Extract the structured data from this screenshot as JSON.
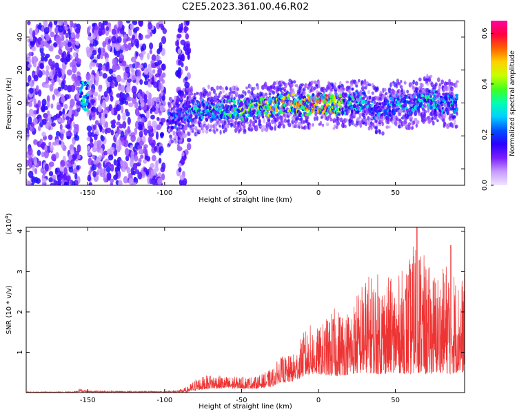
{
  "title": "C2E5.2023.361.00.46.R02",
  "chart_data": [
    {
      "type": "heatmap",
      "xlabel": "Height of straight line (km)",
      "ylabel": "Frequency (Hz)",
      "xlim": [
        -190,
        95
      ],
      "ylim": [
        -50,
        50
      ],
      "xticks": [
        -150,
        -100,
        -50,
        0,
        50
      ],
      "yticks": [
        -40,
        -20,
        0,
        20,
        40
      ],
      "colorbar": {
        "label": "Normalized spectral amplitude",
        "range": [
          0.0,
          0.65
        ],
        "ticks": [
          0.0,
          0.2,
          0.4,
          0.6
        ],
        "colors": [
          "#f0e6ff",
          "#c79bff",
          "#7a1fff",
          "#2a00ff",
          "#0050ff",
          "#00d0ff",
          "#00ffb0",
          "#40ff20",
          "#c8ff00",
          "#ffd000",
          "#ff6000",
          "#ff0040",
          "#ff00a0"
        ]
      },
      "noise_bands": [
        {
          "x_start": -190,
          "x_end": -155,
          "freq_range": [
            -50,
            50
          ],
          "level": 0.1
        },
        {
          "x_start": -150,
          "x_end": -100,
          "freq_range": [
            -50,
            50
          ],
          "level": 0.1
        },
        {
          "x_start": -92,
          "x_end": -84,
          "freq_range": [
            -50,
            50
          ],
          "level": 0.08
        }
      ],
      "signal_trace": {
        "x": [
          -155,
          -150,
          -98,
          -90,
          -85,
          -80,
          -70,
          -60,
          -50,
          -40,
          -30,
          -20,
          -10,
          0,
          10,
          20,
          30,
          40,
          50,
          60,
          70,
          80,
          90
        ],
        "freq": [
          2,
          0,
          -12,
          -10,
          -5,
          -5,
          -4,
          -4,
          -4,
          -3,
          -2,
          0,
          -2,
          0,
          -2,
          0,
          0,
          -6,
          0,
          -2,
          3,
          0,
          -1
        ],
        "amplitude": [
          0.25,
          0.2,
          0.25,
          0.25,
          0.3,
          0.3,
          0.32,
          0.35,
          0.38,
          0.42,
          0.45,
          0.5,
          0.48,
          0.6,
          0.5,
          0.35,
          0.3,
          0.25,
          0.3,
          0.28,
          0.35,
          0.3,
          0.3
        ]
      }
    },
    {
      "type": "line",
      "xlabel": "Height of straight line (km)",
      "ylabel": "SNR (10 * v/v)",
      "y_multiplier": "(x10^4)",
      "xlim": [
        -190,
        95
      ],
      "ylim": [
        0,
        4.1
      ],
      "xticks": [
        -150,
        -100,
        -50,
        0,
        50
      ],
      "yticks": [
        1,
        2,
        3,
        4
      ],
      "color": "#ee3333",
      "envelope": {
        "x": [
          -190,
          -160,
          -155,
          -150,
          -100,
          -90,
          -85,
          -80,
          -70,
          -60,
          -50,
          -40,
          -30,
          -25,
          -20,
          -15,
          -10,
          -5,
          0,
          10,
          20,
          30,
          40,
          50,
          60,
          64,
          70,
          80,
          86,
          90,
          95
        ],
        "peak": [
          0.02,
          0.03,
          0.1,
          0.05,
          0.04,
          0.08,
          0.15,
          0.35,
          0.45,
          0.4,
          0.4,
          0.4,
          0.6,
          0.9,
          0.9,
          1.0,
          1.5,
          1.7,
          1.6,
          2.1,
          2.1,
          2.9,
          3.0,
          2.8,
          3.4,
          4.1,
          3.2,
          3.0,
          3.65,
          2.8,
          3.0
        ],
        "base": [
          0.0,
          0.0,
          0.02,
          0.01,
          0.0,
          0.0,
          0.01,
          0.05,
          0.1,
          0.1,
          0.1,
          0.1,
          0.15,
          0.25,
          0.25,
          0.3,
          0.4,
          0.45,
          0.45,
          0.4,
          0.45,
          0.5,
          0.45,
          0.5,
          0.45,
          0.5,
          0.45,
          0.5,
          0.45,
          0.5,
          0.5
        ]
      }
    }
  ]
}
